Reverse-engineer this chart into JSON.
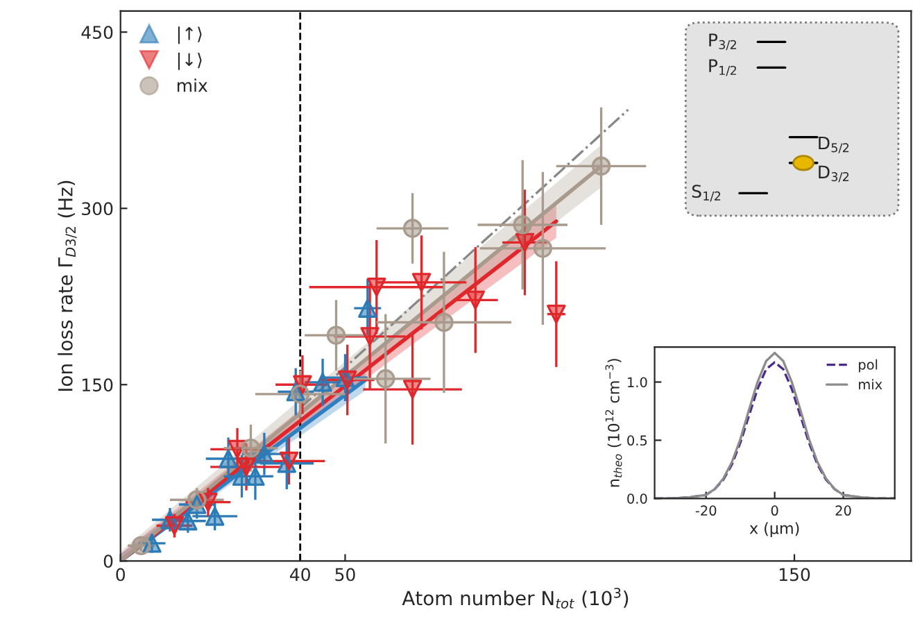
{
  "chart_data": [
    {
      "type": "scatter",
      "xlabel": "Atom number N$_{tot}$ (10$^{3}$)",
      "ylabel": "Ion loss rate Γ$_{D3/2}$ (Hz)",
      "xlim": [
        0,
        176
      ],
      "ylim": [
        0,
        468
      ],
      "xticks": [
        0,
        40,
        50,
        150
      ],
      "yticks": [
        0,
        150,
        300,
        450
      ],
      "legend": "top left",
      "grid": false,
      "ref_lines": [
        {
          "axis": "x",
          "value": 40,
          "color": "#000000",
          "line_style": "dashed"
        }
      ],
      "series": [
        {
          "name": "|↑⟩",
          "type": "scatter",
          "marker": "triangle",
          "color": "#2c7bb6",
          "x": [
            7,
            11,
            15,
            17,
            21,
            24,
            27,
            30,
            32,
            37,
            39,
            45,
            50,
            55
          ],
          "values": [
            15,
            35,
            34,
            48,
            38,
            87,
            72,
            72,
            91,
            83,
            144,
            152,
            156,
            215
          ],
          "errors": [
            8,
            10,
            10,
            12,
            12,
            18,
            18,
            20,
            18,
            22,
            20,
            20,
            20,
            25
          ],
          "xerrors": [
            3,
            4,
            4,
            4,
            5,
            5,
            4,
            4,
            5,
            6,
            4,
            4,
            5,
            3
          ]
        },
        {
          "name": "|↓⟩",
          "type": "scatter",
          "marker": "triangle_down",
          "color": "#e0282c",
          "x": [
            12,
            19.5,
            26,
            28,
            37.5,
            40.5,
            50.5,
            55.5,
            57,
            67,
            65,
            79,
            90,
            97
          ],
          "values": [
            30,
            50,
            95,
            80,
            85,
            150,
            154,
            191,
            233,
            237,
            146,
            222,
            271,
            210
          ],
          "errors": [
            10,
            12,
            18,
            20,
            20,
            25,
            30,
            45,
            40,
            40,
            47,
            45,
            45,
            45
          ],
          "xerrors": [
            4,
            5,
            6,
            8,
            8,
            6,
            6,
            8,
            15,
            10,
            11,
            5,
            5,
            2
          ]
        },
        {
          "name": "mix",
          "type": "scatter",
          "marker": "circle",
          "color": "#a89a8c",
          "x": [
            4.6,
            17,
            29,
            40,
            48,
            59,
            65,
            72,
            89.5,
            94,
            107
          ],
          "values": [
            13,
            52,
            96,
            142,
            192,
            155,
            283,
            203,
            286,
            266,
            336
          ],
          "errors": [
            5,
            10,
            20,
            20,
            30,
            55,
            30,
            60,
            55,
            65,
            50
          ],
          "xerrors": [
            3,
            6,
            6,
            10,
            7,
            10,
            8,
            15,
            10,
            14,
            10
          ]
        },
        {
          "type": "line",
          "color": "#2f7fc1",
          "x": [
            0,
            54.5
          ],
          "values": [
            0,
            154
          ],
          "lower": [
            0,
            145
          ],
          "upper": [
            6,
            163
          ]
        },
        {
          "type": "line",
          "color": "#e0282c",
          "x": [
            0,
            97
          ],
          "values": [
            0,
            289
          ],
          "lower": [
            0,
            275
          ],
          "upper": [
            6,
            303
          ]
        },
        {
          "type": "line",
          "color": "#a89a8c",
          "x": [
            0,
            107
          ],
          "values": [
            0,
            336
          ],
          "lower": [
            0,
            318
          ],
          "upper": [
            8,
            354
          ]
        },
        {
          "type": "line",
          "color": "#888888",
          "line_style": "dashdot",
          "x": [
            40,
            113
          ],
          "values": [
            130,
            384
          ]
        }
      ]
    },
    {
      "type": "line",
      "xlabel": "x (μm)",
      "ylabel": "n$_{theo}$ (10$^{12}$ cm$^{−3}$)",
      "xlim": [
        -35,
        35
      ],
      "ylim": [
        0,
        1.3
      ],
      "xticks": [
        -20,
        0,
        20
      ],
      "yticks": [
        {
          "value": 0,
          "label": "0.0"
        },
        {
          "value": 0.5,
          "label": "0.5"
        },
        {
          "value": 1.0,
          "label": "1.0"
        }
      ],
      "legend": "top right",
      "series": [
        {
          "name": "pol",
          "color": "#4b2a8c",
          "line_style": "dashed",
          "x": [
            -35,
            -30,
            -25,
            -20,
            -17.5,
            -15,
            -12.5,
            -10,
            -7.5,
            -5,
            -2.5,
            0,
            2.5,
            5,
            7.5,
            10,
            12.5,
            15,
            17.5,
            20,
            25,
            30,
            35
          ],
          "values": [
            0,
            0,
            0.01,
            0.03,
            0.08,
            0.16,
            0.29,
            0.48,
            0.71,
            0.94,
            1.11,
            1.17,
            1.11,
            0.94,
            0.71,
            0.48,
            0.29,
            0.16,
            0.08,
            0.03,
            0.01,
            0,
            0
          ]
        },
        {
          "name": "mix",
          "color": "#8c8c8c",
          "line_style": "solid",
          "x": [
            -35,
            -30,
            -25,
            -20,
            -17.5,
            -15,
            -12.5,
            -10,
            -7.5,
            -5,
            -2.5,
            0,
            2.5,
            5,
            7.5,
            10,
            12.5,
            15,
            17.5,
            20,
            25,
            30,
            35
          ],
          "values": [
            0,
            0,
            0.01,
            0.03,
            0.08,
            0.17,
            0.31,
            0.51,
            0.76,
            1.0,
            1.18,
            1.25,
            1.18,
            1.0,
            0.76,
            0.51,
            0.31,
            0.17,
            0.08,
            0.03,
            0.01,
            0,
            0
          ]
        }
      ]
    },
    {
      "type": "other",
      "annotations": [
        "P$_{3/2}$",
        "P$_{1/2}$",
        "D$_{5/2}$",
        "D$_{3/2}$",
        "S$_{1/2}$"
      ]
    }
  ]
}
